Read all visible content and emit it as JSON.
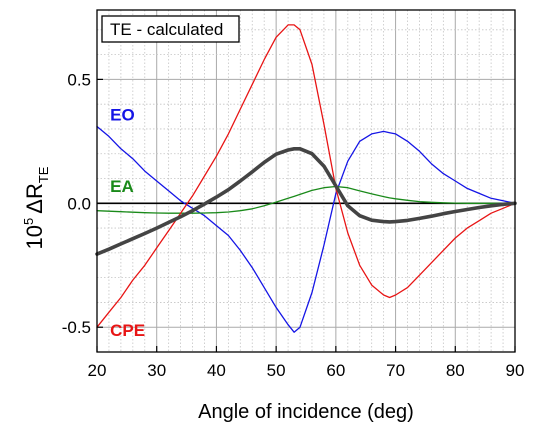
{
  "chart_data": {
    "type": "line",
    "title": "",
    "legend_box_text": "TE - calculated",
    "xlabel": "Angle of incidence (deg)",
    "ylabel": {
      "base": "10",
      "exponent": "5",
      "symbol": "ΔR",
      "subscript": "TE"
    },
    "xlim": [
      20,
      90
    ],
    "ylim": [
      -0.6,
      0.78
    ],
    "x_ticks": [
      20,
      30,
      40,
      50,
      60,
      70,
      80,
      90
    ],
    "y_ticks": [
      {
        "value": -0.5,
        "label": "-0.5"
      },
      {
        "value": 0.0,
        "label": "0.0"
      },
      {
        "value": 0.5,
        "label": "0.5"
      }
    ],
    "grid": true,
    "zero_line": true,
    "x": [
      20,
      22,
      24,
      26,
      28,
      30,
      32,
      34,
      36,
      38,
      40,
      42,
      44,
      46,
      48,
      50,
      52,
      53,
      54,
      56,
      58,
      60,
      62,
      64,
      66,
      68,
      69,
      70,
      72,
      74,
      76,
      78,
      80,
      82,
      84,
      86,
      88,
      90
    ],
    "series": [
      {
        "name": "EO",
        "color": "#1515e6",
        "width": 1.3,
        "y": [
          0.31,
          0.27,
          0.22,
          0.18,
          0.13,
          0.09,
          0.05,
          0.01,
          -0.02,
          -0.05,
          -0.09,
          -0.13,
          -0.19,
          -0.26,
          -0.34,
          -0.42,
          -0.49,
          -0.52,
          -0.5,
          -0.36,
          -0.17,
          0.04,
          0.17,
          0.25,
          0.28,
          0.29,
          0.285,
          0.28,
          0.25,
          0.21,
          0.16,
          0.12,
          0.09,
          0.06,
          0.04,
          0.02,
          0.01,
          0.0
        ],
        "label_value": {
          "x": 22.2,
          "y": 0.335
        }
      },
      {
        "name": "EA",
        "color": "#1a8a1a",
        "width": 1.3,
        "y": [
          -0.03,
          -0.032,
          -0.034,
          -0.036,
          -0.038,
          -0.039,
          -0.04,
          -0.04,
          -0.04,
          -0.039,
          -0.038,
          -0.035,
          -0.03,
          -0.022,
          -0.01,
          0.005,
          0.02,
          0.028,
          0.036,
          0.052,
          0.063,
          0.068,
          0.063,
          0.05,
          0.038,
          0.027,
          0.022,
          0.018,
          0.012,
          0.007,
          0.004,
          0.002,
          0.001,
          0.0,
          0.0,
          0.0,
          0.0,
          0.0
        ],
        "label_value": {
          "x": 22.2,
          "y": 0.045
        }
      },
      {
        "name": "CPE",
        "color": "#e81515",
        "width": 1.3,
        "y": [
          -0.5,
          -0.44,
          -0.38,
          -0.31,
          -0.25,
          -0.18,
          -0.11,
          -0.04,
          0.03,
          0.11,
          0.19,
          0.28,
          0.38,
          0.48,
          0.58,
          0.67,
          0.72,
          0.72,
          0.7,
          0.56,
          0.32,
          0.06,
          -0.12,
          -0.25,
          -0.33,
          -0.37,
          -0.38,
          -0.37,
          -0.34,
          -0.29,
          -0.24,
          -0.19,
          -0.14,
          -0.1,
          -0.07,
          -0.04,
          -0.02,
          0.0
        ],
        "label_value": {
          "x": 22.2,
          "y": -0.535
        }
      },
      {
        "name": "",
        "color": "#444444",
        "width": 3.6,
        "y": [
          -0.205,
          -0.185,
          -0.164,
          -0.143,
          -0.122,
          -0.1,
          -0.077,
          -0.054,
          -0.03,
          -0.003,
          0.025,
          0.055,
          0.09,
          0.127,
          0.165,
          0.198,
          0.215,
          0.22,
          0.22,
          0.2,
          0.15,
          0.07,
          -0.01,
          -0.05,
          -0.068,
          -0.074,
          -0.075,
          -0.074,
          -0.069,
          -0.061,
          -0.052,
          -0.042,
          -0.033,
          -0.025,
          -0.017,
          -0.01,
          -0.004,
          0.0
        ]
      }
    ]
  }
}
